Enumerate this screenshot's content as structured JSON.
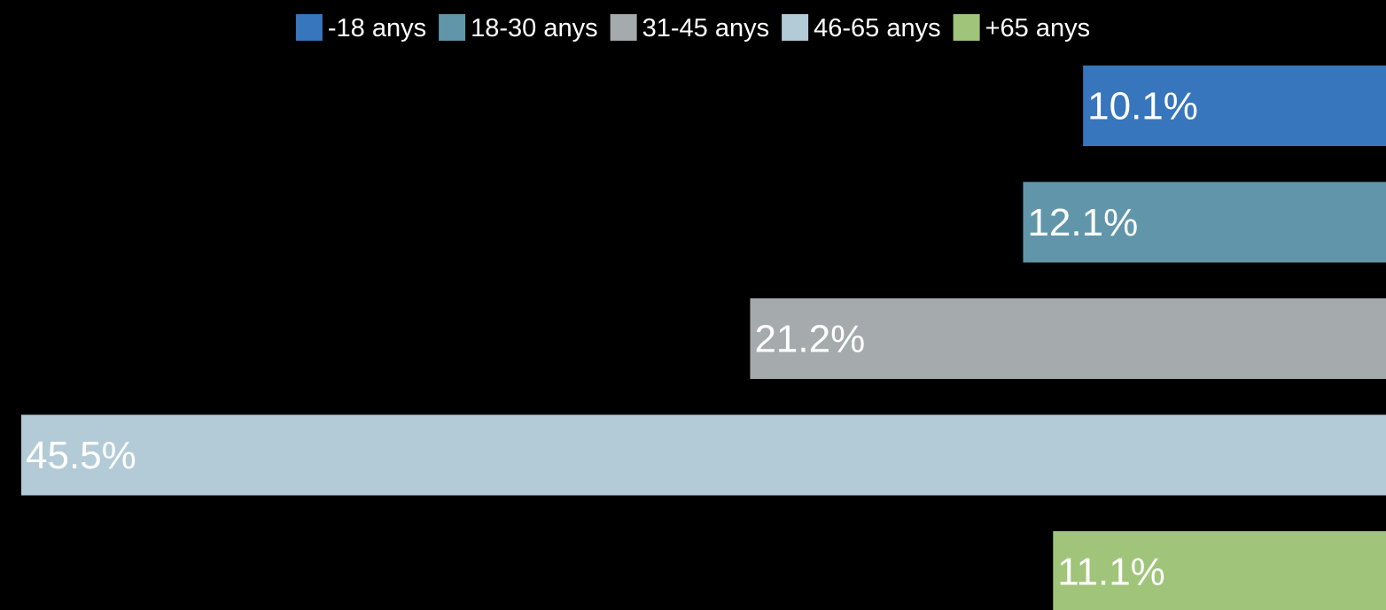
{
  "chart_data": {
    "type": "bar",
    "orientation": "horizontal",
    "bar_direction": "right-to-left",
    "legend_placement": "top-center",
    "grid": false,
    "xlim": [
      0,
      46
    ],
    "series": [
      {
        "name": "-18 anys",
        "value": 10.1,
        "label": "10.1%",
        "color": "#3775bc"
      },
      {
        "name": "18-30 anys",
        "value": 12.1,
        "label": "12.1%",
        "color": "#6196aa"
      },
      {
        "name": "31-45 anys",
        "value": 21.2,
        "label": "21.2%",
        "color": "#a5aaac"
      },
      {
        "name": "46-65 anys",
        "value": 45.5,
        "label": "45.5%",
        "color": "#b3cbd6"
      },
      {
        "name": "+65 anys",
        "value": 11.1,
        "label": "11.1%",
        "color": "#9fc47a"
      }
    ]
  }
}
